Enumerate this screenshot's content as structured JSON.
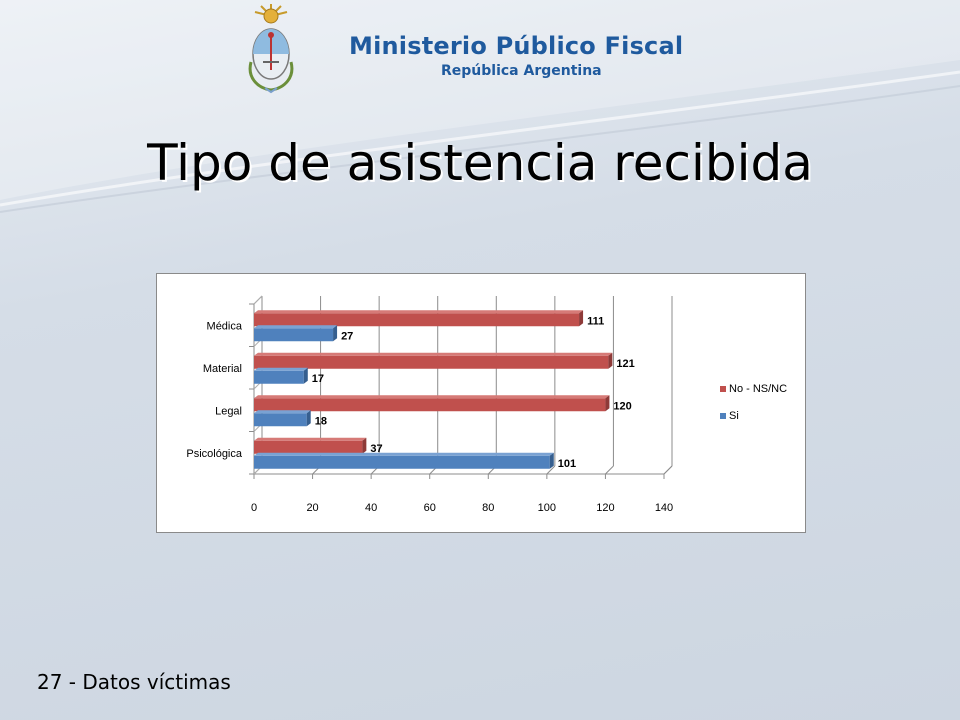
{
  "header": {
    "org_name": "Ministerio Público Fiscal",
    "org_sub": "República Argentina",
    "emblem_icon": "coat-of-arms-icon"
  },
  "slide": {
    "title": "Tipo de asistencia recibida",
    "footer": "27 - Datos víctimas"
  },
  "colors": {
    "series_no": "#c0504d",
    "series_si": "#4f81bd",
    "brand_blue": "#1f5a9e"
  },
  "chart_data": {
    "type": "bar",
    "orientation": "horizontal",
    "categories": [
      "Médica",
      "Material",
      "Legal",
      "Psicológica"
    ],
    "series": [
      {
        "name": "No - NS/NC",
        "values": [
          111,
          121,
          120,
          37
        ]
      },
      {
        "name": "Si",
        "values": [
          27,
          17,
          18,
          101
        ]
      }
    ],
    "xlim": [
      0,
      140
    ],
    "x_ticks": [
      "0",
      "20",
      "40",
      "60",
      "80",
      "100",
      "120",
      "140"
    ],
    "grid": true,
    "legend_position": "right",
    "title": "",
    "xlabel": "",
    "ylabel": ""
  }
}
